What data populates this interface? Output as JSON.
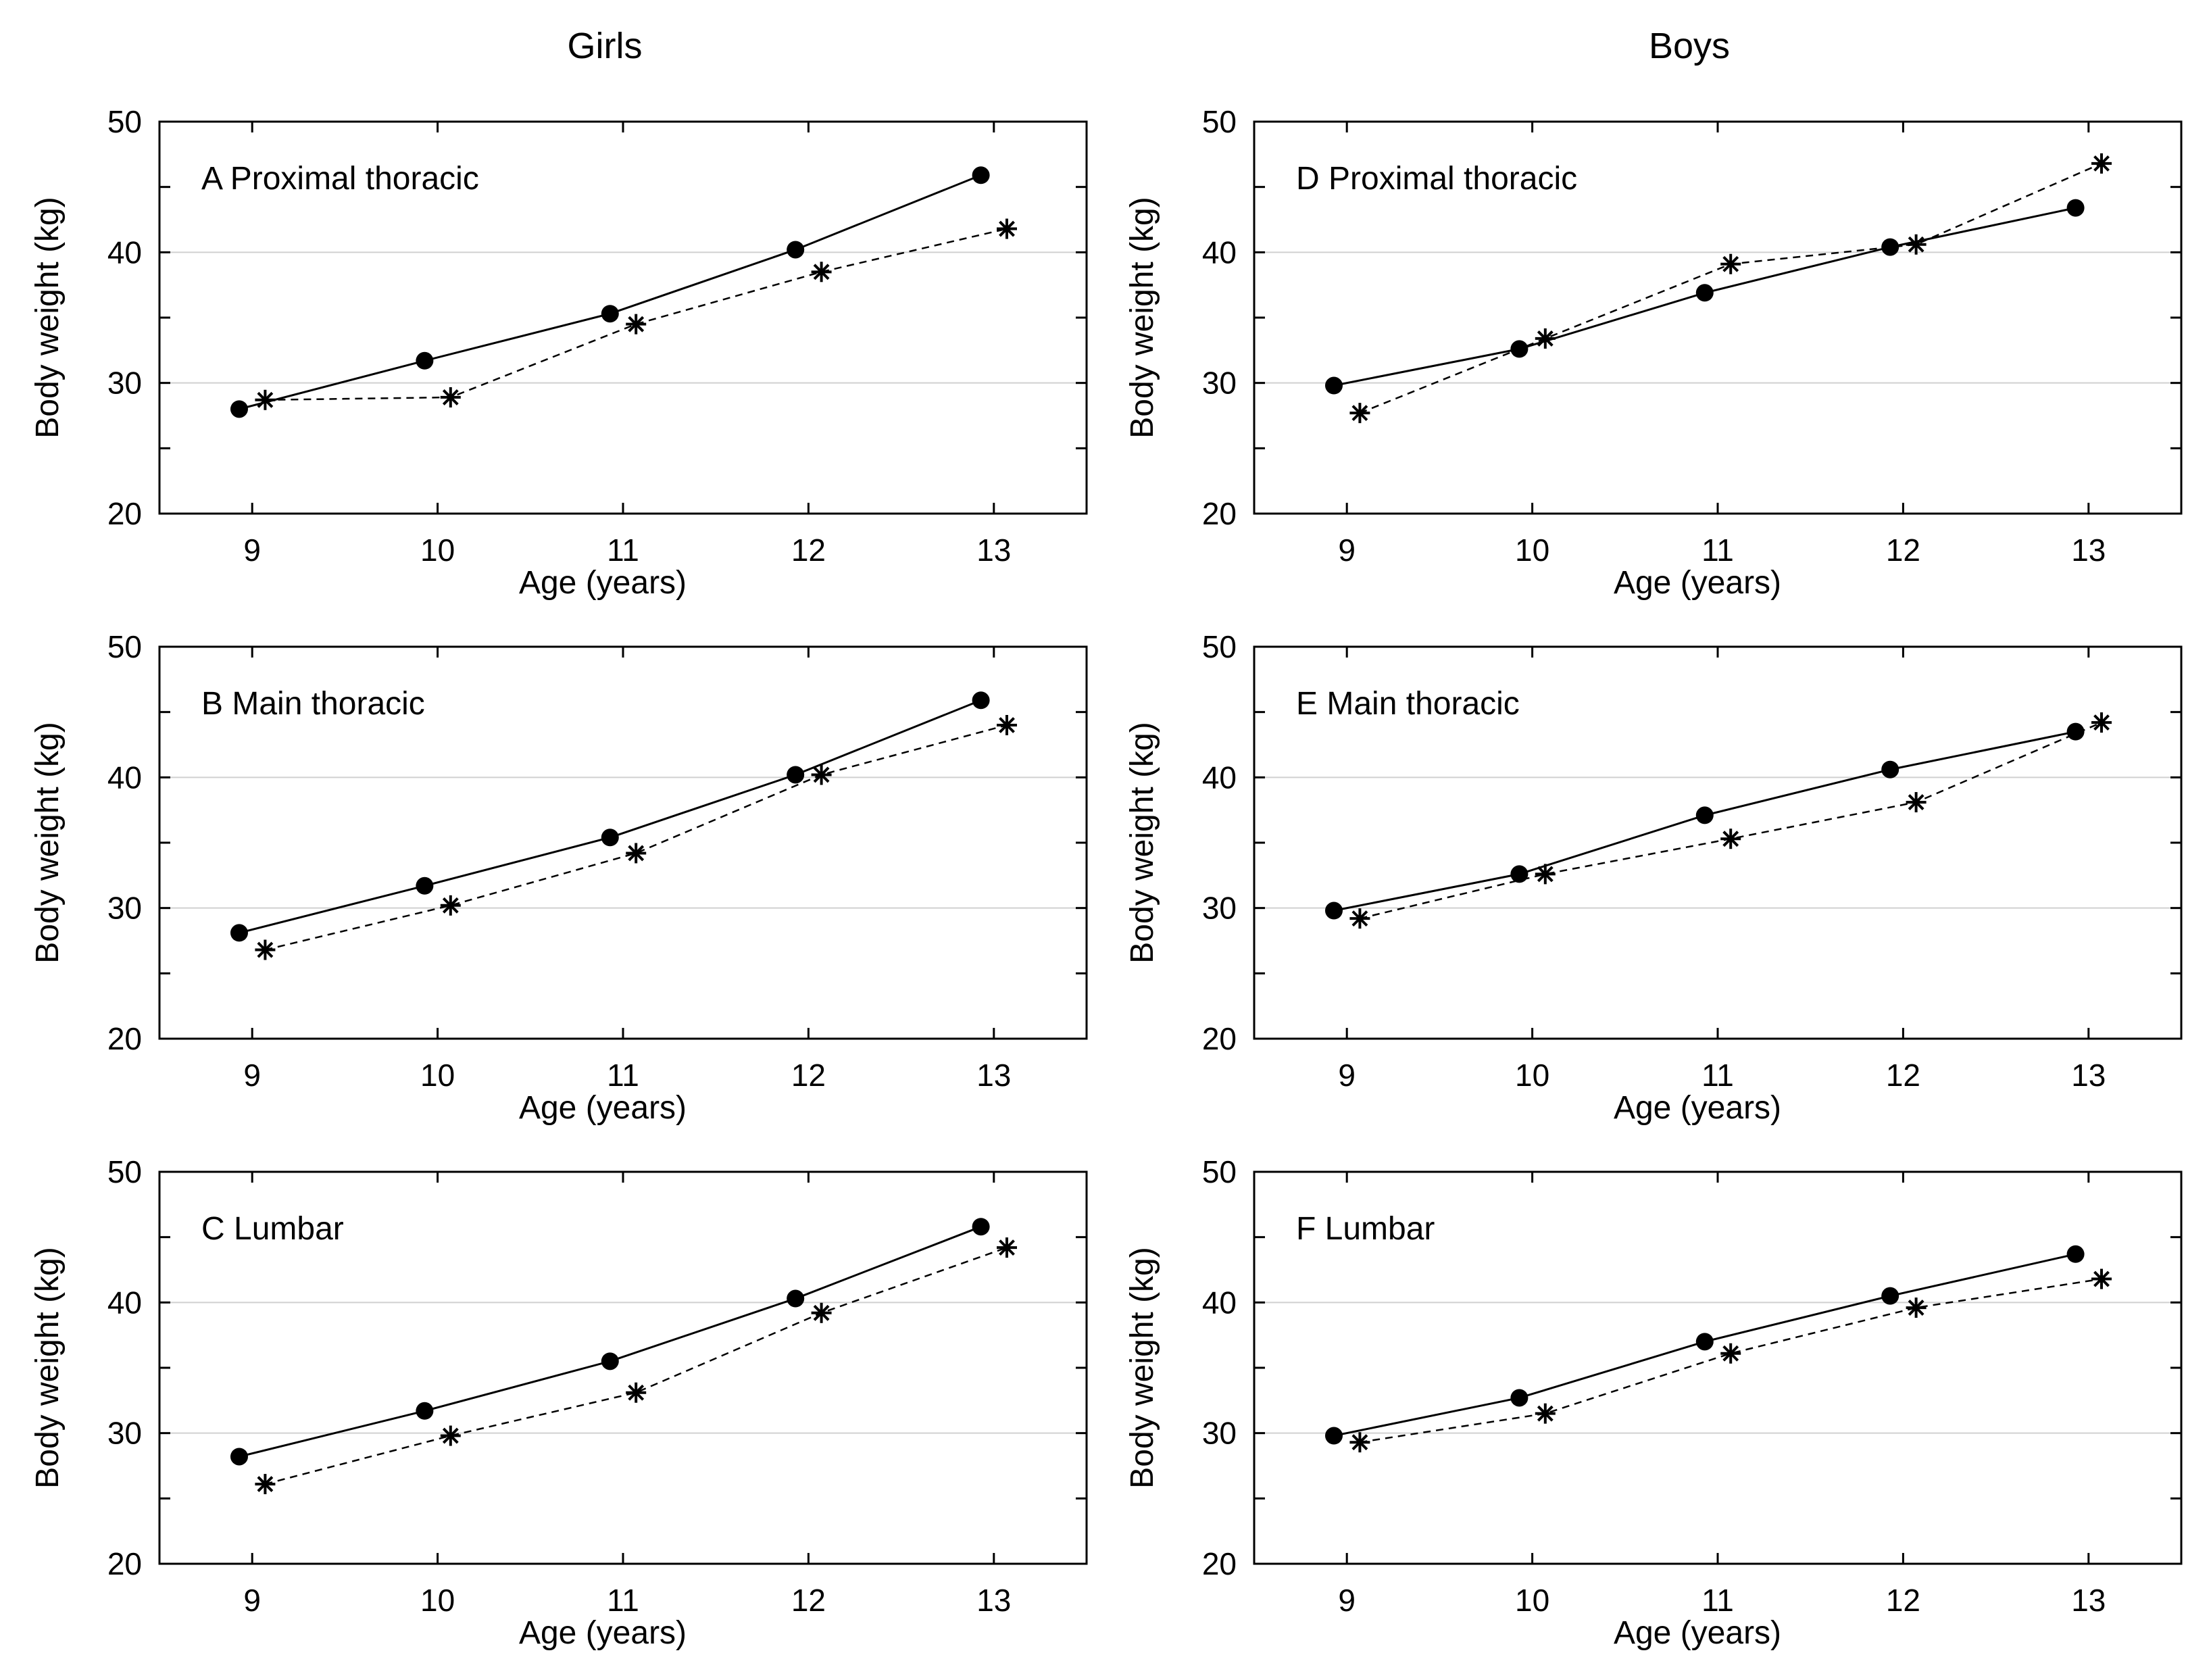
{
  "column_titles": {
    "left": "Girls",
    "right": "Boys"
  },
  "chart_data": [
    {
      "type": "line",
      "panel": "A",
      "title": "A Proximal thoracic",
      "column": "Girls",
      "xlabel": "Age (years)",
      "ylabel": "Body weight (kg)",
      "x": [
        9,
        10,
        11,
        12,
        13
      ],
      "xticks": [
        "9",
        "10",
        "11",
        "12",
        "13"
      ],
      "ylim": [
        20,
        50
      ],
      "yticks": [
        "20",
        "30",
        "40",
        "50"
      ],
      "grid": true,
      "series": [
        {
          "name": "solid",
          "marker": "circle",
          "values": [
            28.0,
            31.7,
            35.3,
            40.2,
            45.9
          ]
        },
        {
          "name": "dashed",
          "marker": "asterisk",
          "values": [
            28.7,
            28.9,
            34.5,
            38.5,
            41.8
          ]
        }
      ]
    },
    {
      "type": "line",
      "panel": "B",
      "title": "B Main thoracic",
      "column": "Girls",
      "xlabel": "Age (years)",
      "ylabel": "Body weight (kg)",
      "x": [
        9,
        10,
        11,
        12,
        13
      ],
      "xticks": [
        "9",
        "10",
        "11",
        "12",
        "13"
      ],
      "ylim": [
        20,
        50
      ],
      "yticks": [
        "20",
        "30",
        "40",
        "50"
      ],
      "grid": true,
      "series": [
        {
          "name": "solid",
          "marker": "circle",
          "values": [
            28.1,
            31.7,
            35.4,
            40.2,
            45.9
          ]
        },
        {
          "name": "dashed",
          "marker": "asterisk",
          "values": [
            26.8,
            30.2,
            34.2,
            40.2,
            44.0
          ]
        }
      ]
    },
    {
      "type": "line",
      "panel": "C",
      "title": "C Lumbar",
      "column": "Girls",
      "xlabel": "Age (years)",
      "ylabel": "Body weight (kg)",
      "x": [
        9,
        10,
        11,
        12,
        13
      ],
      "xticks": [
        "9",
        "10",
        "11",
        "12",
        "13"
      ],
      "ylim": [
        20,
        50
      ],
      "yticks": [
        "20",
        "30",
        "40",
        "50"
      ],
      "grid": true,
      "series": [
        {
          "name": "solid",
          "marker": "circle",
          "values": [
            28.2,
            31.7,
            35.5,
            40.3,
            45.8
          ]
        },
        {
          "name": "dashed",
          "marker": "asterisk",
          "values": [
            26.1,
            29.8,
            33.1,
            39.2,
            44.2
          ]
        }
      ]
    },
    {
      "type": "line",
      "panel": "D",
      "title": "D Proximal thoracic",
      "column": "Boys",
      "xlabel": "Age (years)",
      "ylabel": "Body weight (kg)",
      "x": [
        9,
        10,
        11,
        12,
        13
      ],
      "xticks": [
        "9",
        "10",
        "11",
        "12",
        "13"
      ],
      "ylim": [
        20,
        50
      ],
      "yticks": [
        "20",
        "30",
        "40",
        "50"
      ],
      "grid": true,
      "series": [
        {
          "name": "solid",
          "marker": "circle",
          "values": [
            29.8,
            32.6,
            36.9,
            40.4,
            43.4
          ]
        },
        {
          "name": "dashed",
          "marker": "asterisk",
          "values": [
            27.7,
            33.4,
            39.1,
            40.6,
            46.8
          ]
        }
      ]
    },
    {
      "type": "line",
      "panel": "E",
      "title": "E Main thoracic",
      "column": "Boys",
      "xlabel": "Age (years)",
      "ylabel": "Body weight (kg)",
      "x": [
        9,
        10,
        11,
        12,
        13
      ],
      "xticks": [
        "9",
        "10",
        "11",
        "12",
        "13"
      ],
      "ylim": [
        20,
        50
      ],
      "yticks": [
        "20",
        "30",
        "40",
        "50"
      ],
      "grid": true,
      "series": [
        {
          "name": "solid",
          "marker": "circle",
          "values": [
            29.8,
            32.6,
            37.1,
            40.6,
            43.5
          ]
        },
        {
          "name": "dashed",
          "marker": "asterisk",
          "values": [
            29.2,
            32.6,
            35.3,
            38.1,
            44.2
          ]
        }
      ]
    },
    {
      "type": "line",
      "panel": "F",
      "title": "F Lumbar",
      "column": "Boys",
      "xlabel": "Age (years)",
      "ylabel": "Body weight (kg)",
      "x": [
        9,
        10,
        11,
        12,
        13
      ],
      "xticks": [
        "9",
        "10",
        "11",
        "12",
        "13"
      ],
      "ylim": [
        20,
        50
      ],
      "yticks": [
        "20",
        "30",
        "40",
        "50"
      ],
      "grid": true,
      "series": [
        {
          "name": "solid",
          "marker": "circle",
          "values": [
            29.8,
            32.7,
            37.0,
            40.5,
            43.7
          ]
        },
        {
          "name": "dashed",
          "marker": "asterisk",
          "values": [
            29.3,
            31.5,
            36.1,
            39.6,
            41.8
          ]
        }
      ]
    }
  ]
}
